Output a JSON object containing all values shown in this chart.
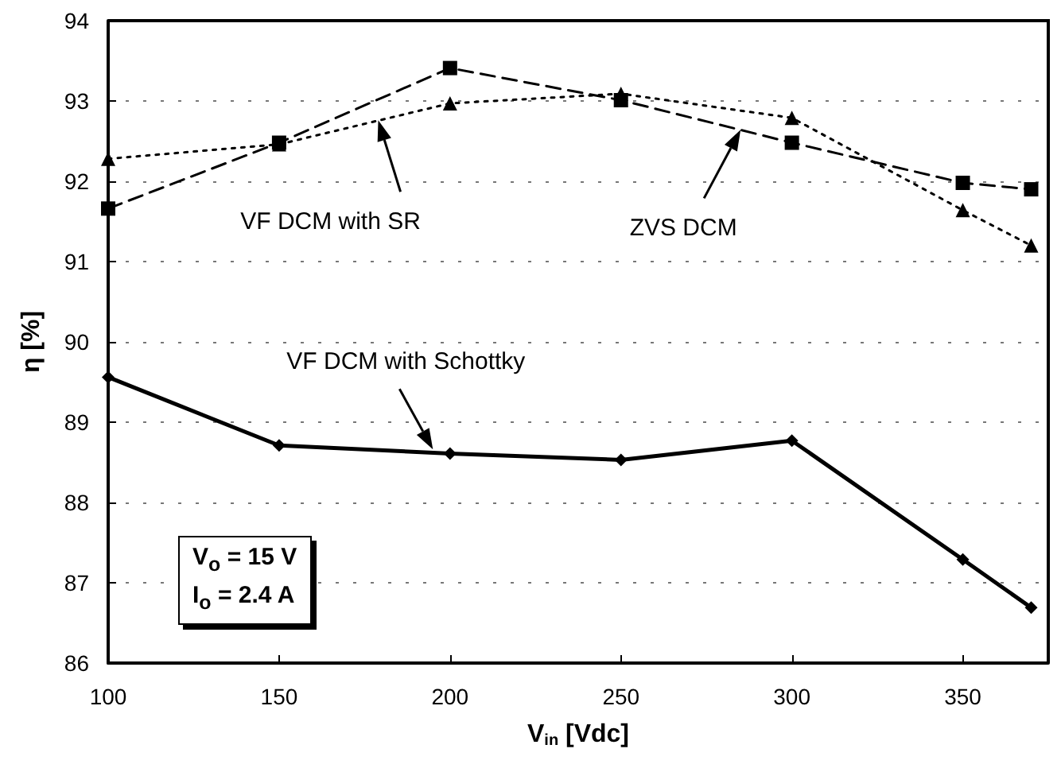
{
  "chart_data": {
    "type": "line",
    "xlabel": "V$_{in}$ [Vdc]",
    "ylabel": "η [%]",
    "xlim": [
      100,
      375
    ],
    "xticks": [
      100,
      150,
      200,
      250,
      300,
      350
    ],
    "ylim": [
      86,
      94
    ],
    "yticks": [
      86,
      87,
      88,
      89,
      90,
      91,
      92,
      93,
      94
    ],
    "grid": "y",
    "series": [
      {
        "color": "#000000",
        "marker": "square",
        "line_style": "dashed",
        "x": [
          100,
          150,
          200,
          250,
          300,
          350,
          370
        ],
        "values": [
          91.66,
          92.48,
          93.41,
          93.01,
          92.48,
          91.98,
          91.9
        ]
      },
      {
        "color": "#000000",
        "marker": "triangle",
        "line_style": "dotted",
        "x": [
          100,
          150,
          200,
          250,
          300,
          350,
          370
        ],
        "values": [
          92.28,
          92.46,
          92.97,
          93.09,
          92.79,
          91.64,
          91.2
        ]
      },
      {
        "color": "#000000",
        "marker": "diamond",
        "line_style": "solid",
        "x": [
          100,
          150,
          200,
          250,
          300,
          350,
          370
        ],
        "values": [
          89.56,
          88.71,
          88.61,
          88.53,
          88.77,
          87.29,
          86.69
        ]
      }
    ],
    "annotations": [
      "ZVS DCM",
      "VF DCM with SR",
      "VF DCM with Schottky",
      "V$_{o}$ = 15 V",
      "I$_{o}$ = 2.4 A"
    ]
  }
}
